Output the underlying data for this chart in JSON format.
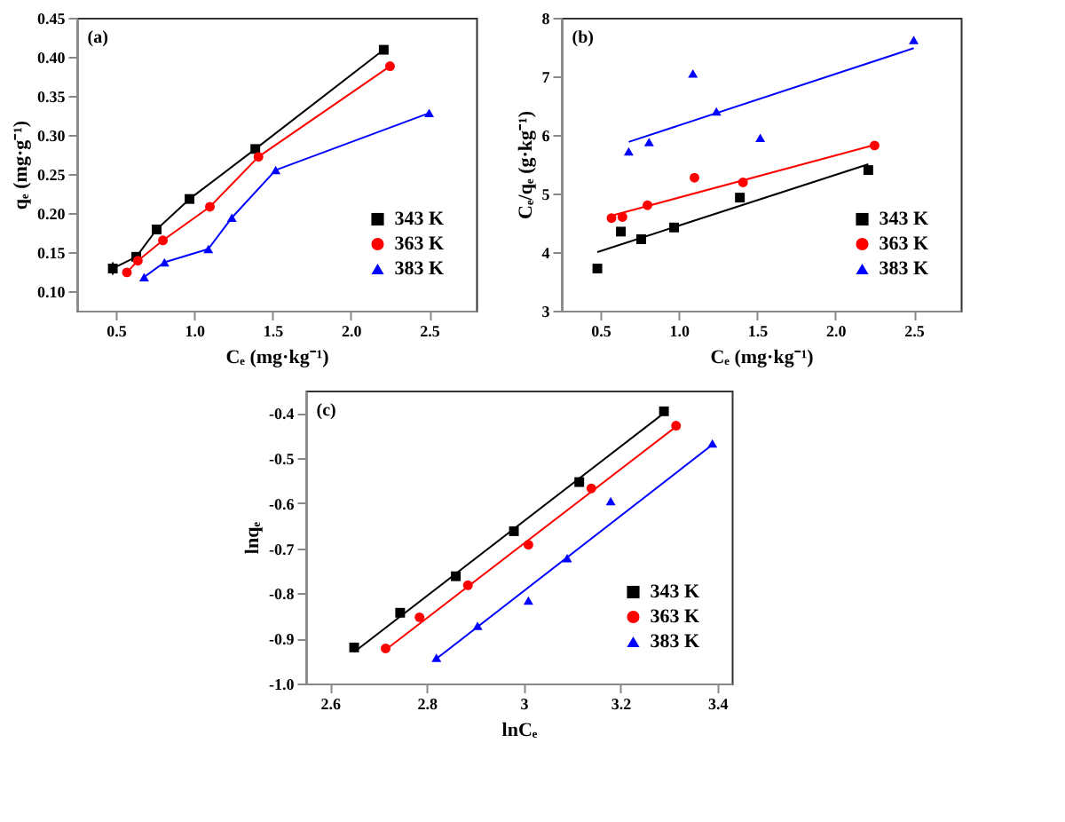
{
  "chart_data": [
    {
      "type": "line",
      "annotations": [
        "(a)"
      ],
      "xlabel": "Cₑ (mg·kg⁻¹)",
      "ylabel": "qₑ (mg·g⁻¹)",
      "xlim": [
        0.25,
        2.8
      ],
      "ylim": [
        0.075,
        0.45
      ],
      "xticks": [
        {
          "value": 0.5,
          "label": "0.5"
        },
        {
          "value": 1,
          "label": "1.0"
        },
        {
          "value": 1.5,
          "label": "1.5"
        },
        {
          "value": 2,
          "label": "2.0"
        },
        {
          "value": 2.5,
          "label": "2.5"
        }
      ],
      "yticks": [
        {
          "value": 0.1,
          "label": "0.10"
        },
        {
          "value": 0.15,
          "label": "0.15"
        },
        {
          "value": 0.2,
          "label": "0.20"
        },
        {
          "value": 0.25,
          "label": "0.25"
        },
        {
          "value": 0.3,
          "label": "0.30"
        },
        {
          "value": 0.35,
          "label": "0.35"
        },
        {
          "value": 0.4,
          "label": "0.40"
        },
        {
          "value": 0.45,
          "label": "0.45"
        }
      ],
      "grid": false,
      "legend": "bottom right",
      "series": [
        {
          "name": "343 K",
          "color": "#000000",
          "marker": "square",
          "x": [
            0.48,
            0.63,
            0.76,
            0.97,
            1.39,
            2.21
          ],
          "values": [
            0.129,
            0.144,
            0.179,
            0.218,
            0.282,
            0.409
          ],
          "errors": [
            0.008,
            null,
            0.006,
            null,
            null,
            null
          ]
        },
        {
          "name": "363 K",
          "color": "#ff0000",
          "marker": "circle",
          "x": [
            0.57,
            0.64,
            0.8,
            1.1,
            1.41,
            2.25
          ],
          "values": [
            0.124,
            0.139,
            0.165,
            0.208,
            0.272,
            0.388
          ],
          "errors": [
            null,
            null,
            null,
            null,
            null,
            0.004
          ]
        },
        {
          "name": "383 K",
          "color": "#0000ff",
          "marker": "triangle",
          "x": [
            0.68,
            0.81,
            1.09,
            1.24,
            1.52,
            2.5
          ],
          "values": [
            0.118,
            0.137,
            0.154,
            0.194,
            0.255,
            0.328
          ]
        }
      ]
    },
    {
      "type": "scatter",
      "annotations": [
        "(b)"
      ],
      "xlabel": "Cₑ (mg·kg⁻¹)",
      "ylabel": "Cₑ/qₑ (g·kg⁻¹)",
      "xlim": [
        0.25,
        2.8
      ],
      "ylim": [
        3,
        8
      ],
      "xticks": [
        {
          "value": 0.5,
          "label": "0.5"
        },
        {
          "value": 1,
          "label": "1.0"
        },
        {
          "value": 1.5,
          "label": "1.5"
        },
        {
          "value": 2,
          "label": "2.0"
        },
        {
          "value": 2.5,
          "label": "2.5"
        }
      ],
      "yticks": [
        3,
        4,
        5,
        6,
        7,
        8
      ],
      "grid": false,
      "legend": "bottom right",
      "series": [
        {
          "name": "343 K",
          "color": "#000000",
          "marker": "square",
          "x": [
            0.48,
            0.63,
            0.76,
            0.97,
            1.39,
            2.21
          ],
          "values": [
            3.72,
            4.35,
            4.22,
            4.42,
            4.93,
            5.4
          ]
        },
        {
          "name": "363 K",
          "color": "#ff0000",
          "marker": "circle",
          "x": [
            0.57,
            0.64,
            0.8,
            1.1,
            1.41,
            2.25
          ],
          "values": [
            4.58,
            4.6,
            4.8,
            5.27,
            5.19,
            5.82
          ]
        },
        {
          "name": "383 K",
          "color": "#0000ff",
          "marker": "triangle",
          "x": [
            0.68,
            0.81,
            1.09,
            1.24,
            1.52,
            2.5
          ],
          "values": [
            5.72,
            5.88,
            7.05,
            6.4,
            5.95,
            7.62
          ]
        },
        {
          "type": "line",
          "color": "#000000",
          "marker": "none",
          "x": [
            0.48,
            2.21
          ],
          "values": [
            4.0,
            5.5
          ]
        },
        {
          "type": "line",
          "color": "#ff0000",
          "marker": "none",
          "x": [
            0.57,
            2.25
          ],
          "values": [
            4.62,
            5.83
          ]
        },
        {
          "type": "line",
          "color": "#0000ff",
          "marker": "none",
          "x": [
            0.68,
            2.5
          ],
          "values": [
            5.88,
            7.48
          ]
        }
      ]
    },
    {
      "type": "scatter",
      "annotations": [
        "(c)"
      ],
      "xlabel": "lnCₑ",
      "ylabel": "lnqₑ",
      "xlim": [
        2.55,
        3.43
      ],
      "ylim": [
        -1.0,
        -0.35
      ],
      "xticks": [
        2.6,
        2.8,
        3,
        {
          "value": 3.2,
          "label": "3.2"
        },
        3.4
      ],
      "yticks": [
        {
          "value": -1,
          "label": "-1.0"
        },
        -0.9,
        -0.8,
        -0.7,
        -0.6,
        -0.5,
        -0.4
      ],
      "grid": false,
      "legend": "bottom right",
      "series": [
        {
          "name": "343 K",
          "color": "#000000",
          "marker": "square",
          "x": [
            2.65,
            2.745,
            2.86,
            2.98,
            3.115,
            3.29
          ],
          "values": [
            -0.92,
            -0.843,
            -0.762,
            -0.662,
            -0.553,
            -0.396
          ]
        },
        {
          "name": "363 K",
          "color": "#ff0000",
          "marker": "circle",
          "x": [
            2.715,
            2.785,
            2.885,
            3.01,
            3.14,
            3.315
          ],
          "values": [
            -0.922,
            -0.853,
            -0.782,
            -0.692,
            -0.567,
            -0.428
          ]
        },
        {
          "name": "383 K",
          "color": "#0000ff",
          "marker": "triangle",
          "x": [
            2.82,
            2.905,
            3.01,
            3.09,
            3.18,
            3.39
          ],
          "values": [
            -0.943,
            -0.872,
            -0.816,
            -0.722,
            -0.595,
            -0.467
          ]
        },
        {
          "type": "line",
          "color": "#000000",
          "marker": "none",
          "x": [
            2.65,
            3.29
          ],
          "values": [
            -0.93,
            -0.4
          ]
        },
        {
          "type": "line",
          "color": "#ff0000",
          "marker": "none",
          "x": [
            2.715,
            3.315
          ],
          "values": [
            -0.925,
            -0.43
          ]
        },
        {
          "type": "line",
          "color": "#0000ff",
          "marker": "none",
          "x": [
            2.82,
            3.39
          ],
          "values": [
            -0.945,
            -0.47
          ]
        }
      ]
    }
  ]
}
